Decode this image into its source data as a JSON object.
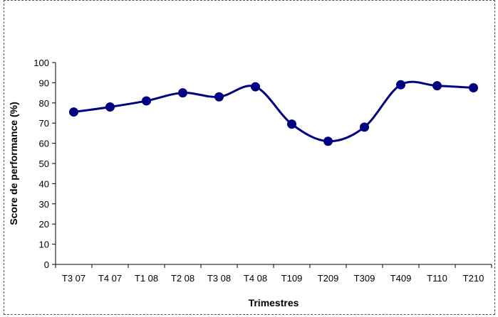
{
  "chart_data": {
    "type": "line",
    "title": "",
    "xlabel": "Trimestres",
    "ylabel": "Score de performance (%)",
    "categories": [
      "T3 07",
      "T4 07",
      "T1 08",
      "T2 08",
      "T3 08",
      "T4 08",
      "T109",
      "T209",
      "T309",
      "T409",
      "T110",
      "T210"
    ],
    "series": [
      {
        "values": [
          75.5,
          78,
          81,
          85,
          83,
          88,
          69.5,
          61,
          68,
          89,
          88.5,
          87.5
        ],
        "color": "#000080"
      }
    ],
    "ylim": [
      0,
      100
    ],
    "yticks": [
      0,
      10,
      20,
      30,
      40,
      50,
      60,
      70,
      80,
      90,
      100
    ],
    "ytick_labels": [
      "0",
      "10",
      "20",
      "30",
      "40",
      "50",
      "60",
      "70",
      "80",
      "90",
      "100"
    ],
    "line_style": "smooth",
    "marker": "circle",
    "grid": false,
    "legend": "none"
  }
}
